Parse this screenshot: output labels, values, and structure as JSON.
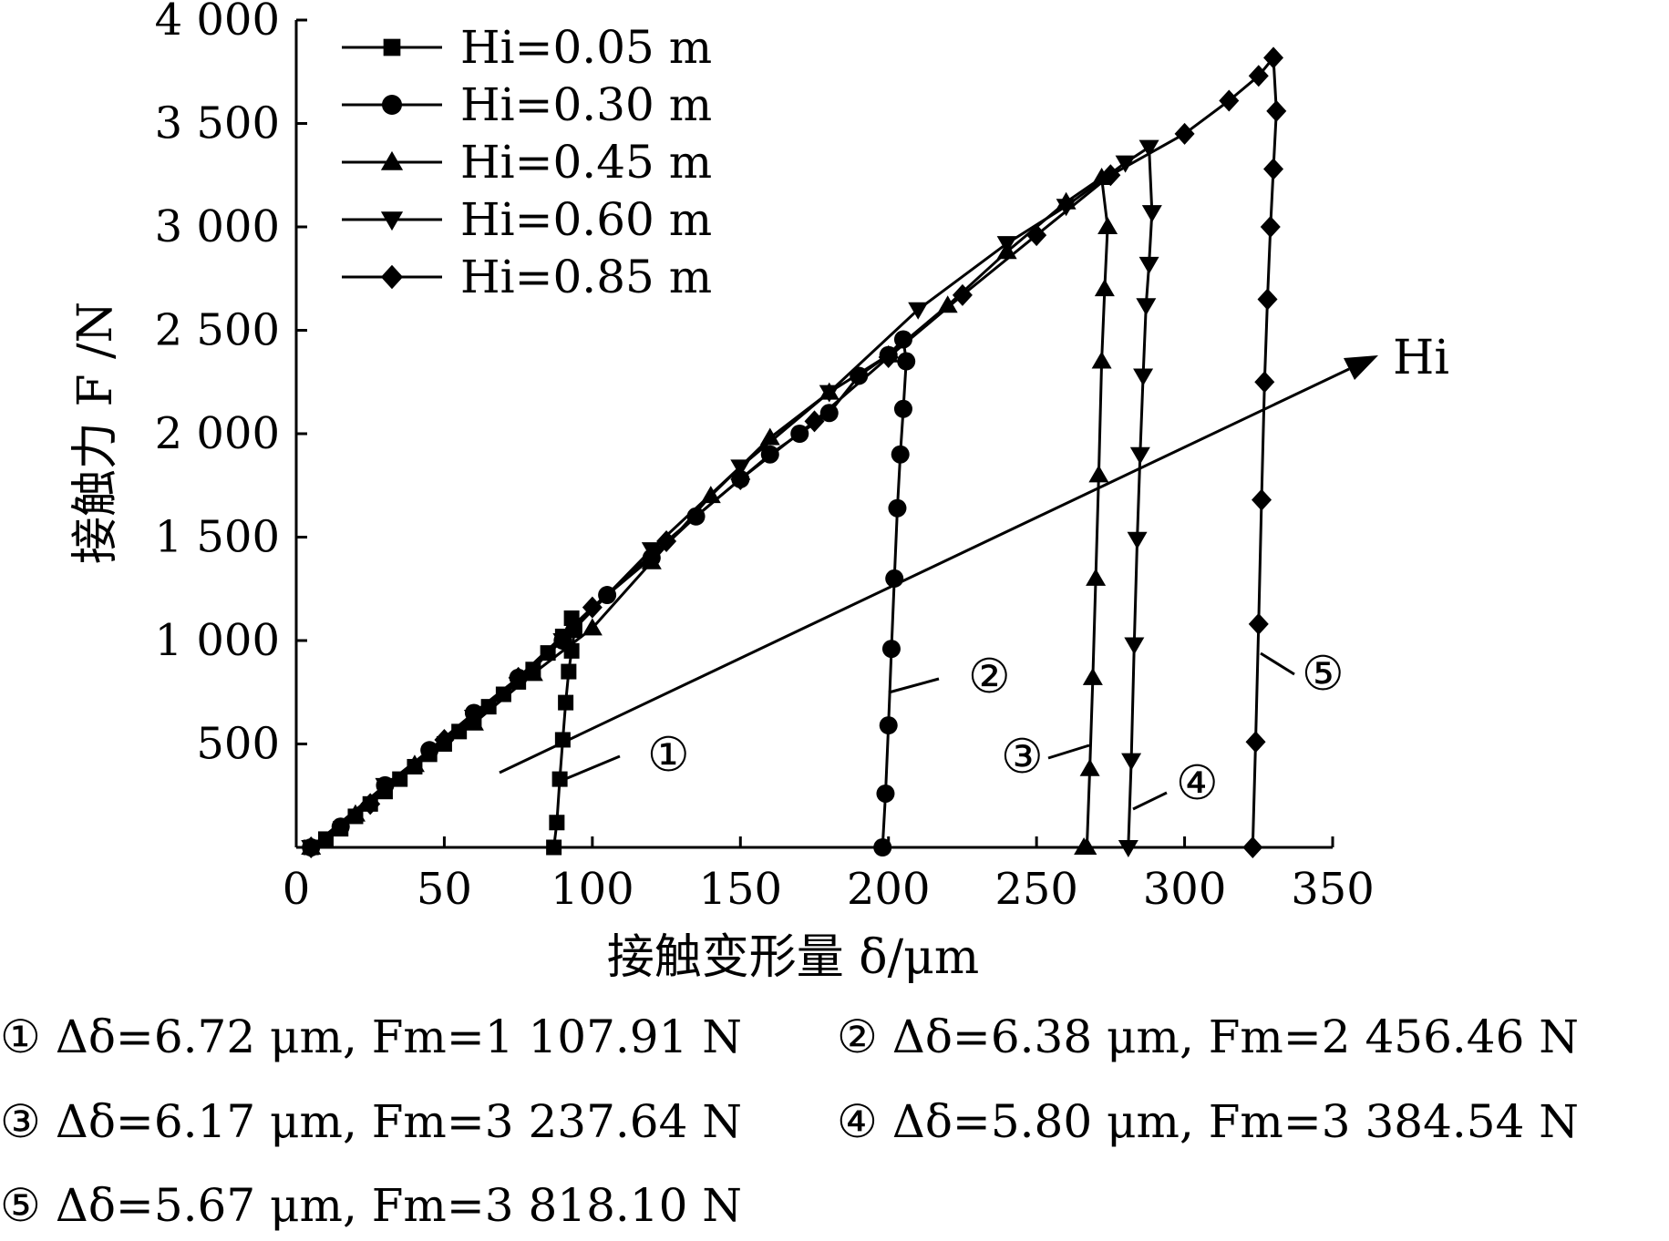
{
  "chart_data": {
    "type": "line",
    "xlabel": "接触变形量 δ/μm",
    "ylabel": "接触力 F /N",
    "xlim": [
      0,
      350
    ],
    "ylim": [
      0,
      4000
    ],
    "x_ticks": [
      0,
      50,
      100,
      150,
      200,
      250,
      300,
      350
    ],
    "y_ticks": [
      500,
      1000,
      1500,
      2000,
      2500,
      3000,
      3500,
      4000
    ],
    "x_tick_labels": [
      "0",
      "50",
      "100",
      "150",
      "200",
      "250",
      "300",
      "350"
    ],
    "y_tick_labels": [
      "500",
      "1 000",
      "1 500",
      "2 000",
      "2 500",
      "3 000",
      "3 500",
      "4 000"
    ],
    "legend": {
      "position": "top-left"
    },
    "grid": false,
    "series": [
      {
        "name": "Hi=0.05 m",
        "marker": "square",
        "x": [
          5,
          10,
          15,
          20,
          25,
          30,
          35,
          40,
          45,
          50,
          55,
          60,
          65,
          70,
          75,
          80,
          85,
          90,
          93,
          94,
          93,
          92,
          91,
          90,
          89,
          88,
          87
        ],
        "y": [
          0,
          40,
          90,
          150,
          210,
          270,
          330,
          390,
          450,
          500,
          560,
          620,
          680,
          740,
          800,
          860,
          940,
          1020,
          1108,
          1050,
          950,
          850,
          700,
          520,
          330,
          120,
          0
        ]
      },
      {
        "name": "Hi=0.30 m",
        "marker": "circle",
        "x": [
          5,
          15,
          30,
          45,
          60,
          75,
          90,
          105,
          120,
          135,
          150,
          160,
          170,
          180,
          190,
          200,
          205,
          206,
          205,
          204,
          203,
          202,
          201,
          200,
          199,
          198
        ],
        "y": [
          0,
          100,
          300,
          470,
          650,
          820,
          1000,
          1220,
          1400,
          1600,
          1780,
          1900,
          2000,
          2100,
          2280,
          2380,
          2456,
          2350,
          2120,
          1900,
          1640,
          1300,
          960,
          590,
          260,
          0
        ]
      },
      {
        "name": "Hi=0.45 m",
        "marker": "triangle-up",
        "x": [
          5,
          20,
          40,
          60,
          80,
          100,
          120,
          140,
          160,
          180,
          200,
          220,
          240,
          260,
          272,
          274,
          273,
          272,
          271,
          270,
          269,
          268,
          267,
          266
        ],
        "y": [
          0,
          160,
          400,
          600,
          840,
          1060,
          1380,
          1700,
          1980,
          2200,
          2380,
          2620,
          2880,
          3120,
          3238,
          3000,
          2700,
          2350,
          1800,
          1300,
          820,
          380,
          0,
          0
        ]
      },
      {
        "name": "Hi=0.60 m",
        "marker": "triangle-down",
        "x": [
          5,
          30,
          60,
          90,
          120,
          150,
          180,
          210,
          240,
          260,
          280,
          288,
          289,
          288,
          287,
          286,
          285,
          284,
          283,
          282,
          281
        ],
        "y": [
          0,
          300,
          630,
          1000,
          1440,
          1840,
          2200,
          2600,
          2920,
          3100,
          3310,
          3385,
          3070,
          2820,
          2620,
          2280,
          1900,
          1490,
          980,
          420,
          0
        ]
      },
      {
        "name": "Hi=0.85 m",
        "marker": "diamond",
        "x": [
          5,
          25,
          50,
          75,
          100,
          125,
          150,
          175,
          200,
          225,
          250,
          275,
          300,
          315,
          325,
          330,
          331,
          330,
          329,
          328,
          327,
          326,
          325,
          324,
          323
        ],
        "y": [
          0,
          210,
          520,
          820,
          1160,
          1480,
          1780,
          2060,
          2370,
          2670,
          2960,
          3250,
          3450,
          3610,
          3730,
          3818,
          3560,
          3280,
          3000,
          2650,
          2250,
          1680,
          1080,
          510,
          0
        ]
      }
    ],
    "arrow_label": "Hi",
    "callouts": [
      "①",
      "②",
      "③",
      "④",
      "⑤"
    ],
    "annotations": [
      "① Δδ=6.72 μm, Fm=1 107.91 N",
      "② Δδ=6.38 μm, Fm=2 456.46 N",
      "③ Δδ=6.17 μm, Fm=3 237.64 N",
      "④ Δδ=5.80 μm, Fm=3 384.54 N",
      "⑤ Δδ=5.67 μm, Fm=3 818.10 N"
    ]
  }
}
